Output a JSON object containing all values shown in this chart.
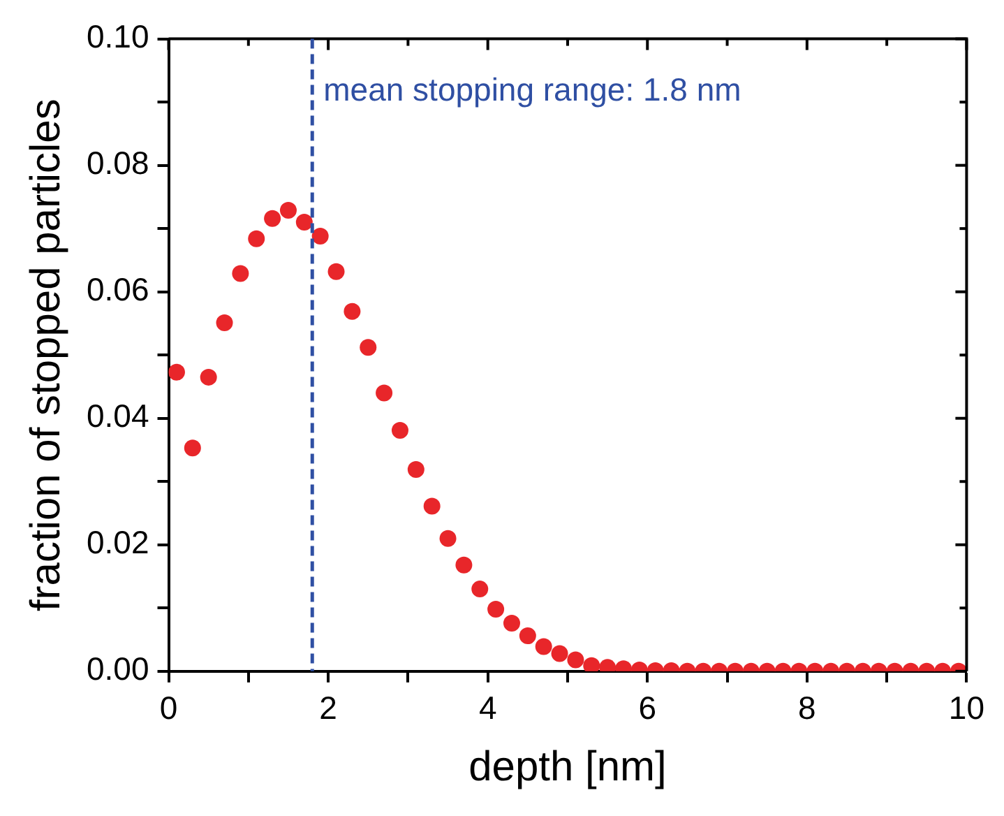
{
  "chart_data": {
    "type": "scatter",
    "xlabel": "depth [nm]",
    "ylabel": "fraction of stopped particles",
    "x": [
      0.1,
      0.3,
      0.5,
      0.7,
      0.9,
      1.1,
      1.3,
      1.5,
      1.7,
      1.9,
      2.1,
      2.3,
      2.5,
      2.7,
      2.9,
      3.1,
      3.3,
      3.5,
      3.7,
      3.9,
      4.1,
      4.3,
      4.5,
      4.7,
      4.9,
      5.1,
      5.3,
      5.5,
      5.7,
      5.9,
      6.1,
      6.3,
      6.5,
      6.7,
      6.9,
      7.1,
      7.3,
      7.5,
      7.7,
      7.9,
      8.1,
      8.3,
      8.5,
      8.7,
      8.9,
      9.1,
      9.3,
      9.5,
      9.7,
      9.9
    ],
    "series": [
      {
        "color": "#e8262a",
        "values": [
          0.0473,
          0.0353,
          0.0465,
          0.0551,
          0.0629,
          0.0684,
          0.0716,
          0.0729,
          0.071,
          0.0688,
          0.0632,
          0.0569,
          0.0512,
          0.044,
          0.0381,
          0.0319,
          0.0261,
          0.021,
          0.0168,
          0.013,
          0.0098,
          0.0076,
          0.0056,
          0.0039,
          0.0028,
          0.0018,
          0.0009,
          0.0006,
          0.0004,
          0.0002,
          0.0001,
          0.0001,
          0,
          0,
          0,
          0,
          0,
          0,
          0,
          0,
          0,
          0,
          0,
          0,
          0,
          0,
          0,
          0,
          0,
          0
        ]
      }
    ],
    "xlim": [
      0,
      10
    ],
    "ylim": [
      0,
      0.1
    ],
    "xticks": [
      0,
      {
        "value": 1,
        "label": null
      },
      2,
      {
        "value": 3,
        "label": null
      },
      4,
      {
        "value": 5,
        "label": null
      },
      6,
      {
        "value": 7,
        "label": null
      },
      8,
      {
        "value": 9,
        "label": null
      },
      10
    ],
    "yticks": [
      {
        "value": 0,
        "label": "0.00"
      },
      {
        "value": 0.01,
        "label": null
      },
      {
        "value": 0.02,
        "label": "0.02"
      },
      {
        "value": 0.03,
        "label": null
      },
      {
        "value": 0.04,
        "label": "0.04"
      },
      {
        "value": 0.05,
        "label": null
      },
      {
        "value": 0.06,
        "label": "0.06"
      },
      {
        "value": 0.07,
        "label": null
      },
      {
        "value": 0.08,
        "label": "0.08"
      },
      {
        "value": 0.09,
        "label": null
      },
      {
        "value": 0.1,
        "label": "0.10"
      }
    ],
    "ref_lines": [
      {
        "axis": "x",
        "value": 1.8,
        "label": "mean stopping range: 1.8 nm",
        "color": "#2f4fa3",
        "line_style": "dashed"
      }
    ],
    "marker": "circle",
    "grid": false,
    "legend": false
  }
}
